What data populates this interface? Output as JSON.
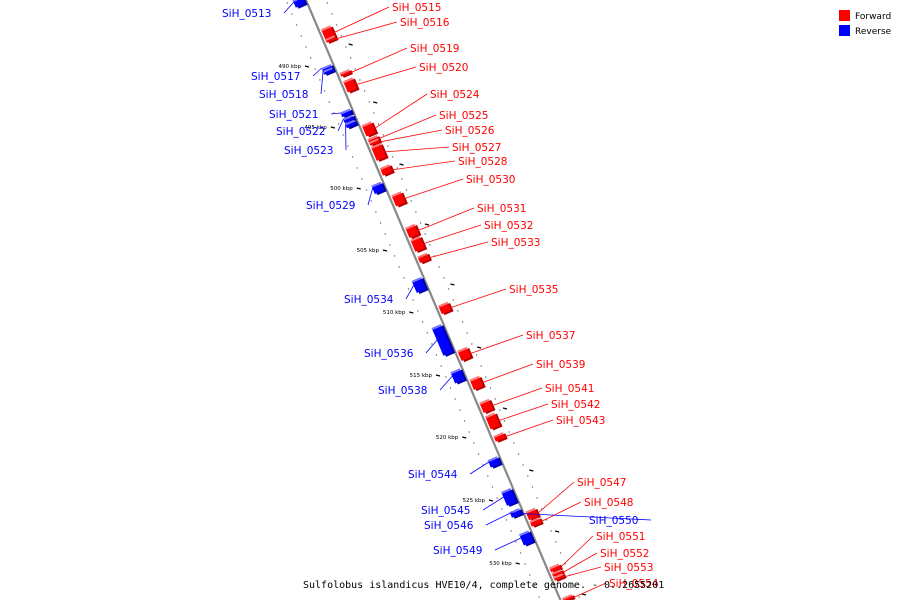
{
  "caption": "Sulfolobus islandicus HVE10/4, complete genome. - 0..2655201",
  "legend": [
    {
      "label": "Forward",
      "color": "#ff0000"
    },
    {
      "label": "Reverse",
      "color": "#0000ff"
    }
  ],
  "colors": {
    "forward": "#ff0000",
    "reverse": "#0000ff",
    "backbone": "#888888"
  },
  "scale_labels": [
    "490 kbp",
    "495 kbp",
    "500 kbp",
    "505 kbp",
    "510 kbp",
    "515 kbp",
    "520 kbp",
    "525 kbp",
    "530 kbp"
  ],
  "genes": [
    {
      "name": "SiH_0513",
      "strand": "reverse"
    },
    {
      "name": "SiH_0515",
      "strand": "forward"
    },
    {
      "name": "SiH_0516",
      "strand": "forward"
    },
    {
      "name": "SiH_0519",
      "strand": "forward"
    },
    {
      "name": "SiH_0520",
      "strand": "forward"
    },
    {
      "name": "SiH_0517",
      "strand": "reverse"
    },
    {
      "name": "SiH_0518",
      "strand": "reverse"
    },
    {
      "name": "SiH_0524",
      "strand": "forward"
    },
    {
      "name": "SiH_0521",
      "strand": "reverse"
    },
    {
      "name": "SiH_0525",
      "strand": "forward"
    },
    {
      "name": "SiH_0526",
      "strand": "forward"
    },
    {
      "name": "SiH_0522",
      "strand": "reverse"
    },
    {
      "name": "SiH_0527",
      "strand": "forward"
    },
    {
      "name": "SiH_0523",
      "strand": "reverse"
    },
    {
      "name": "SiH_0528",
      "strand": "forward"
    },
    {
      "name": "SiH_0530",
      "strand": "forward"
    },
    {
      "name": "SiH_0529",
      "strand": "reverse"
    },
    {
      "name": "SiH_0531",
      "strand": "forward"
    },
    {
      "name": "SiH_0532",
      "strand": "forward"
    },
    {
      "name": "SiH_0533",
      "strand": "forward"
    },
    {
      "name": "SiH_0535",
      "strand": "forward"
    },
    {
      "name": "SiH_0534",
      "strand": "reverse"
    },
    {
      "name": "SiH_0537",
      "strand": "forward"
    },
    {
      "name": "SiH_0536",
      "strand": "reverse"
    },
    {
      "name": "SiH_0539",
      "strand": "forward"
    },
    {
      "name": "SiH_0538",
      "strand": "reverse"
    },
    {
      "name": "SiH_0541",
      "strand": "forward"
    },
    {
      "name": "SiH_0542",
      "strand": "forward"
    },
    {
      "name": "SiH_0543",
      "strand": "forward"
    },
    {
      "name": "SiH_0544",
      "strand": "reverse"
    },
    {
      "name": "SiH_0547",
      "strand": "forward"
    },
    {
      "name": "SiH_0548",
      "strand": "forward"
    },
    {
      "name": "SiH_0545",
      "strand": "reverse"
    },
    {
      "name": "SiH_0550",
      "strand": "reverse"
    },
    {
      "name": "SiH_0546",
      "strand": "reverse"
    },
    {
      "name": "SiH_0551",
      "strand": "forward"
    },
    {
      "name": "SiH_0549",
      "strand": "reverse"
    },
    {
      "name": "SiH_0552",
      "strand": "forward"
    },
    {
      "name": "SiH_0553",
      "strand": "forward"
    },
    {
      "name": "SiH_0554",
      "strand": "forward"
    }
  ]
}
